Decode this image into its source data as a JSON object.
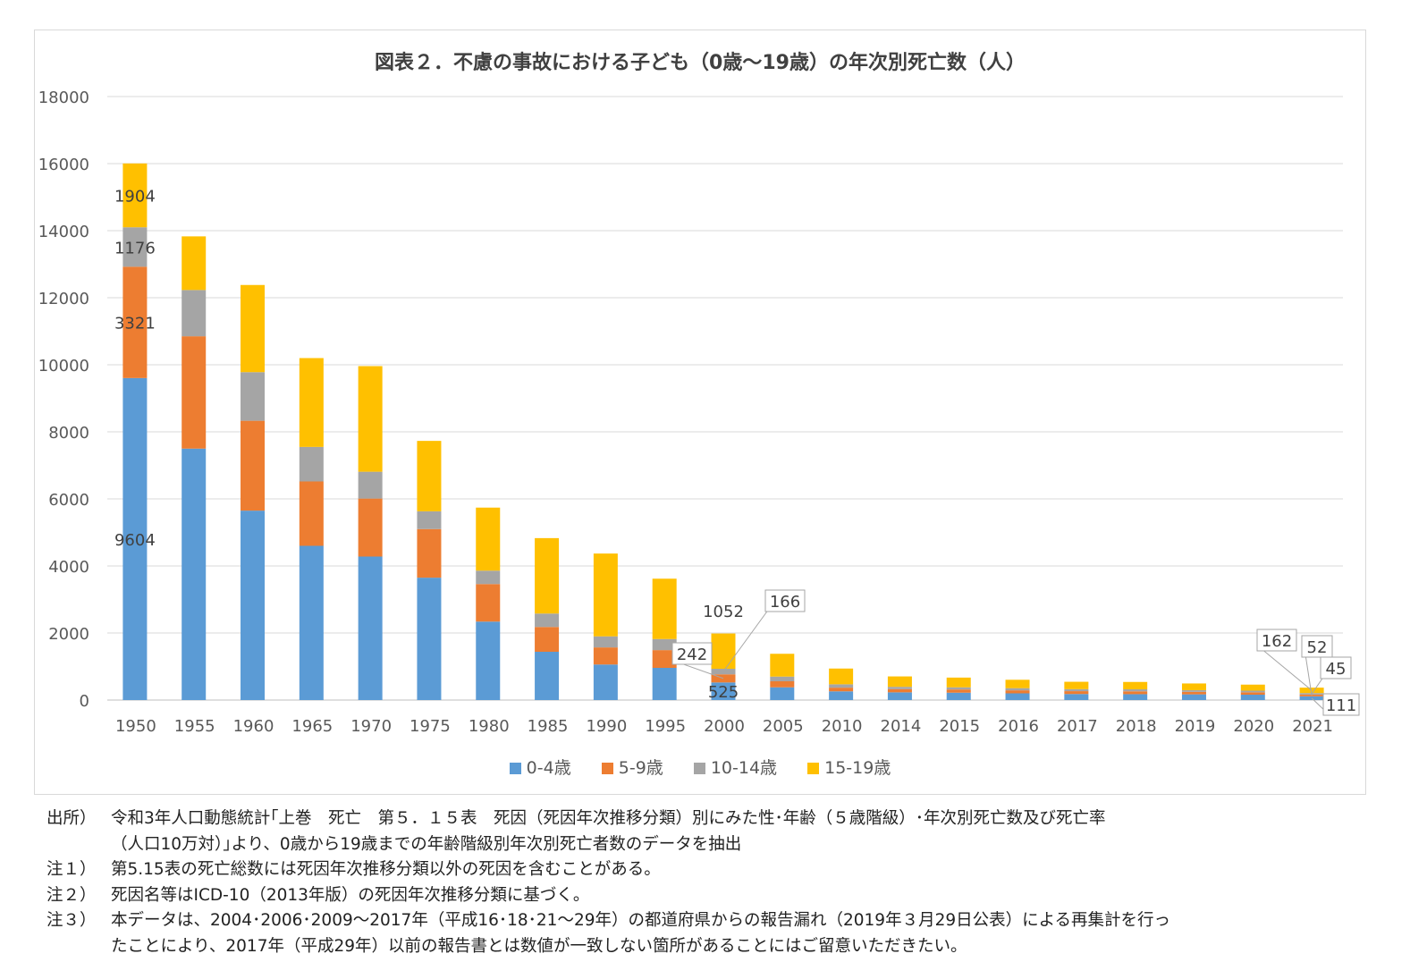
{
  "chart_data": {
    "type": "bar",
    "stacked": true,
    "title": "図表２．不慮の事故における子ども（0歳～19歳）の年次別死亡数（人）",
    "categories": [
      "1950",
      "1955",
      "1960",
      "1965",
      "1970",
      "1975",
      "1980",
      "1985",
      "1990",
      "1995",
      "2000",
      "2005",
      "2010",
      "2014",
      "2015",
      "2016",
      "2017",
      "2018",
      "2019",
      "2020",
      "2021"
    ],
    "series": [
      {
        "name": "0-4歳",
        "color": "#5b9bd5",
        "values": [
          9604,
          7500,
          5650,
          4600,
          4280,
          3650,
          2340,
          1440,
          1060,
          960,
          525,
          380,
          260,
          230,
          220,
          200,
          180,
          175,
          170,
          160,
          111
        ]
      },
      {
        "name": "5-9歳",
        "color": "#ed7d31",
        "values": [
          3321,
          3350,
          2680,
          1920,
          1730,
          1450,
          1120,
          740,
          510,
          530,
          242,
          180,
          110,
          95,
          95,
          90,
          85,
          85,
          75,
          70,
          52
        ]
      },
      {
        "name": "10-14歳",
        "color": "#a5a5a5",
        "values": [
          1176,
          1380,
          1450,
          1030,
          800,
          530,
          400,
          400,
          330,
          330,
          166,
          140,
          100,
          70,
          65,
          65,
          60,
          60,
          50,
          50,
          45
        ]
      },
      {
        "name": "15-19歳",
        "color": "#ffc000",
        "values": [
          1904,
          1600,
          2600,
          2650,
          3150,
          2100,
          1880,
          2250,
          2470,
          1800,
          1052,
          680,
          470,
          310,
          290,
          250,
          220,
          220,
          200,
          180,
          162
        ]
      }
    ],
    "ylim": [
      0,
      18000
    ],
    "yticks": [
      "18000",
      "16000",
      "14000",
      "12000",
      "10000",
      "8000",
      "6000",
      "4000",
      "2000",
      "0"
    ],
    "grid": true,
    "legend_position": "bottom",
    "data_labels": [
      {
        "category": "1950",
        "series": "15-19歳",
        "text": "1904"
      },
      {
        "category": "1950",
        "series": "10-14歳",
        "text": "1176"
      },
      {
        "category": "1950",
        "series": "5-9歳",
        "text": "3321"
      },
      {
        "category": "1950",
        "series": "0-4歳",
        "text": "9604"
      },
      {
        "category": "2000",
        "series": "15-19歳",
        "text": "1052"
      },
      {
        "category": "2000",
        "series": "10-14歳",
        "text": "166",
        "callout": true
      },
      {
        "category": "2000",
        "series": "5-9歳",
        "text": "242",
        "callout": true
      },
      {
        "category": "2000",
        "series": "0-4歳",
        "text": "525"
      },
      {
        "category": "2021",
        "series": "15-19歳",
        "text": "162",
        "callout": true
      },
      {
        "category": "2021",
        "series": "5-9歳",
        "text": "52",
        "callout": true
      },
      {
        "category": "2021",
        "series": "10-14歳",
        "text": "45",
        "callout": true
      },
      {
        "category": "2021",
        "series": "0-4歳",
        "text": "111",
        "callout": true
      }
    ]
  },
  "notes": {
    "source_label": "出所）",
    "source_text": "令和3年人口動態統計｢上巻　死亡　第５．１５表　死因（死因年次推移分類）別にみた性･年齢（５歳階級）･年次別死亡数及び死亡率",
    "source_text_cont": "（人口10万対）｣より、0歳から19歳までの年齢階級別年次別死亡者数のデータを抽出",
    "note1_label": "注１）",
    "note1_text": "第5.15表の死亡総数には死因年次推移分類以外の死因を含むことがある。",
    "note2_label": "注２）",
    "note2_text": "死因名等はICD-10（2013年版）の死因年次推移分類に基づく。",
    "note3_label": "注３）",
    "note3_text": "本データは、2004･2006･2009～2017年（平成16･18･21～29年）の都道府県からの報告漏れ（2019年３月29日公表）による再集計を行っ",
    "note3_text_cont": "たことにより、2017年（平成29年）以前の報告書とは数値が一致しない箇所があることにはご留意いただきたい。"
  }
}
